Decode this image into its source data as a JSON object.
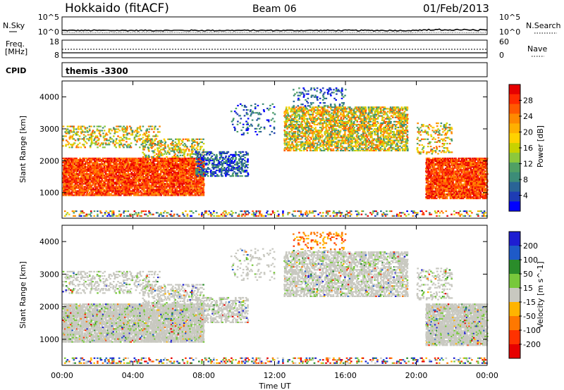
{
  "header": {
    "station": "Hokkaido (fitACF)",
    "beam": "Beam 06",
    "date": "01/Feb/2013"
  },
  "top_strips": {
    "nsky_label": "N.Sky",
    "nsky_ticks": [
      "10^5",
      "10^0"
    ],
    "nsearch_label": "N.Search",
    "nsearch_ticks": [
      "10^5",
      "10^0"
    ],
    "freq_label_1": "Freq.",
    "freq_label_2": "[MHz]",
    "freq_ticks": [
      "18",
      "8"
    ],
    "nave_label": "Nave",
    "nave_ticks": [
      "60",
      "0"
    ],
    "cpid_label": "CPID",
    "cpid_value": "themis -3300"
  },
  "chart_data": [
    {
      "type": "heatmap",
      "name": "power",
      "xlabel": "",
      "ylabel": "Slant Range [km]",
      "x_ticks": [
        "00:00",
        "04:00",
        "08:00",
        "12:00",
        "16:00",
        "20:00",
        "00:00"
      ],
      "y_ticks": [
        "1000",
        "2000",
        "3000",
        "4000"
      ],
      "ylim": [
        200,
        4500
      ],
      "colorbar": {
        "label": "Power [dB]",
        "ticks": [
          "28",
          "24",
          "20",
          "16",
          "12",
          "8",
          "4"
        ],
        "colors": [
          "#e60000",
          "#ff2a00",
          "#ff5a00",
          "#ff8a00",
          "#ffb000",
          "#ffd200",
          "#c8d200",
          "#8cc83c",
          "#50a064",
          "#3c8c78",
          "#2a6496",
          "#1e3cb4",
          "#0000ff"
        ]
      }
    },
    {
      "type": "heatmap",
      "name": "velocity",
      "xlabel": "Time UT",
      "ylabel": "Slant Range [km]",
      "x_ticks": [
        "00:00",
        "04:00",
        "08:00",
        "12:00",
        "16:00",
        "20:00",
        "00:00"
      ],
      "y_ticks": [
        "1000",
        "2000",
        "3000",
        "4000"
      ],
      "ylim": [
        200,
        4500
      ],
      "colorbar": {
        "label": "Velocity [m s^-1]",
        "ticks": [
          "200",
          "100",
          "50",
          "15",
          "-15",
          "-50",
          "-100",
          "-200"
        ],
        "colors": [
          "#1e1ed2",
          "#1e5ac8",
          "#2a8c2a",
          "#78c83c",
          "#c8c8c0",
          "#ffb400",
          "#ff7800",
          "#ff3200",
          "#e60000"
        ]
      }
    }
  ]
}
